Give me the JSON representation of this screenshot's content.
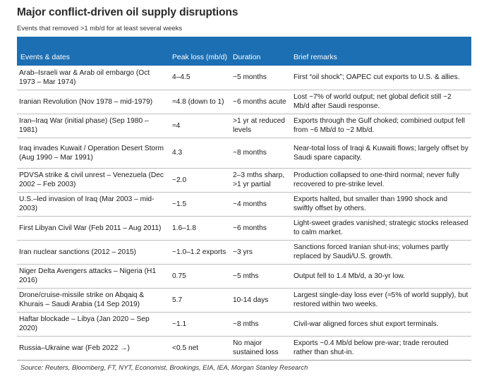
{
  "title": "Major conflict-driven oil supply disruptions",
  "subtitle": "Events that removed >1 mb/d for at least several weeks",
  "columns": [
    "Events & dates",
    "Peak loss (mb/d)",
    "Duration",
    "Brief remarks"
  ],
  "rows": [
    {
      "event": "Arab–Israeli war & Arab oil embargo (Oct 1973 – Mar 1974)",
      "loss": "4–4.5",
      "duration": "~5 months",
      "remarks": "First “oil shock”; OAPEC cut exports to U.S. & allies."
    },
    {
      "event": "Iranian Revolution (Nov 1978 – mid-1979)",
      "loss": "≈4.8 (down to 1)",
      "duration": "~6 months acute",
      "remarks": "Lost ~7% of world output; net global deficit still ~2 Mb/d after Saudi response."
    },
    {
      "event": "Iran–Iraq War (initial phase) (Sep 1980 – 1981)",
      "loss": "≈4",
      "duration": ">1 yr at reduced levels",
      "remarks": "Exports through the Gulf choked; combined output fell from ~6 Mb/d to ~2 Mb/d."
    },
    {
      "event": "Iraq invades Kuwait / Operation Desert Storm (Aug 1990 – Mar 1991)",
      "loss": "4.3",
      "duration": "~8 months",
      "remarks": "Near-total loss of Iraqi & Kuwaiti flows; largely offset by Saudi spare capacity."
    },
    {
      "event": "PDVSA strike & civil unrest – Venezuela (Dec 2002 – Feb 2003)",
      "loss": "~2.0",
      "duration": "2–3 mths sharp, >1 yr partial",
      "remarks": "Production collapsed to one-third normal; never fully recovered to pre-strike level."
    },
    {
      "event": "U.S.–led invasion of Iraq (Mar 2003 – mid-2003)",
      "loss": "~1.5",
      "duration": "~4 months",
      "remarks": "Exports halted, but smaller than 1990 shock and swiftly offset by others."
    },
    {
      "event": "First Libyan Civil War (Feb 2011 – Aug 2011)",
      "loss": "1.6–1.8",
      "duration": "~6 months",
      "remarks": "Light-sweet grades vanished; strategic stocks released to calm market."
    },
    {
      "event": "Iran nuclear sanctions (2012 – 2015)",
      "loss": "~1.0–1.2 exports",
      "duration": "~3 yrs",
      "remarks": "Sanctions forced Iranian shut-ins; volumes partly replaced by Saudi/U.S. growth."
    },
    {
      "event": "Niger Delta Avengers attacks – Nigeria (H1 2016)",
      "loss": "0.75",
      "duration": "~5 mths",
      "remarks": "Output fell to 1.4 Mb/d, a 30-yr low."
    },
    {
      "event": "Drone/cruise-missile strike on Abqaiq & Khurais – Saudi Arabia (14 Sep 2019)",
      "loss": "5.7",
      "duration": "10-14 days",
      "remarks": "Largest single-day loss ever (≈5% of world supply), but restored within two weeks."
    },
    {
      "event": "Haftar blockade – Libya (Jan 2020 – Sep 2020)",
      "loss": "~1.1",
      "duration": "~8 mths",
      "remarks": "Civil-war aligned forces shut export terminals."
    },
    {
      "event": "Russia–Ukraine war (Feb 2022 →)",
      "loss": "<0.5 net",
      "duration": "No major sustained loss",
      "remarks": "Exports ~0.4 Mb/d below pre-war; trade rerouted rather than shut-in."
    }
  ],
  "source": "Source: Reuters, Bloomberg, FT, NYT, Economist, Brookings, EIA, IEA, Morgan Stanley Research",
  "colors": {
    "header_bg": "#1c6fb3",
    "header_text": "#ffffff"
  }
}
